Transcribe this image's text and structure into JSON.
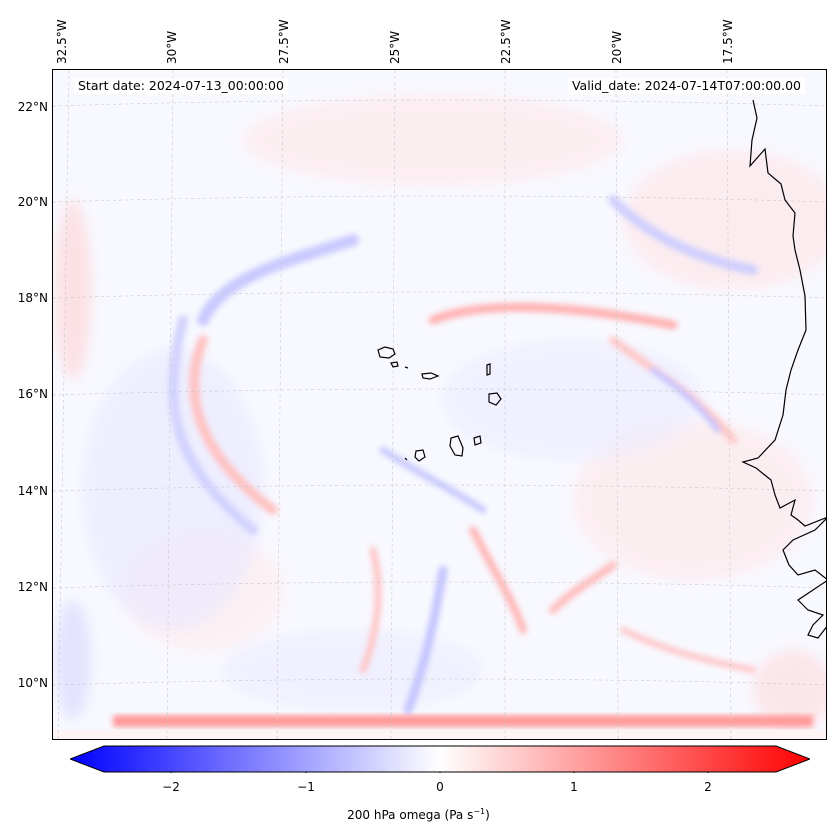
{
  "map": {
    "start_date": "Start date: 2024-07-13_00:00:00",
    "valid_date": "Valid_date: 2024-07-14T07:00:00.00",
    "lon_labels": [
      "32.5°W",
      "30°W",
      "27.5°W",
      "25°W",
      "22.5°W",
      "20°W",
      "17.5°W"
    ],
    "lat_labels": [
      "22°N",
      "20°N",
      "18°N",
      "16°N",
      "14°N",
      "12°N",
      "10°N"
    ]
  },
  "colorbar": {
    "ticks": [
      "−2",
      "−1",
      "0",
      "1",
      "2"
    ],
    "tick_values": [
      -2,
      -1,
      0,
      1,
      2
    ],
    "range": [
      -2.6,
      2.6
    ],
    "colormap": "bwr",
    "extend": "both",
    "title_prefix": "200 hPa omega (Pa s",
    "title_exp": "−1",
    "title_suffix": ")"
  },
  "colors": {
    "negative": "#0000ff",
    "zero": "#ffffff",
    "positive": "#ff0000",
    "coastline": "#000000",
    "gridline": "#c8c8c8"
  }
}
